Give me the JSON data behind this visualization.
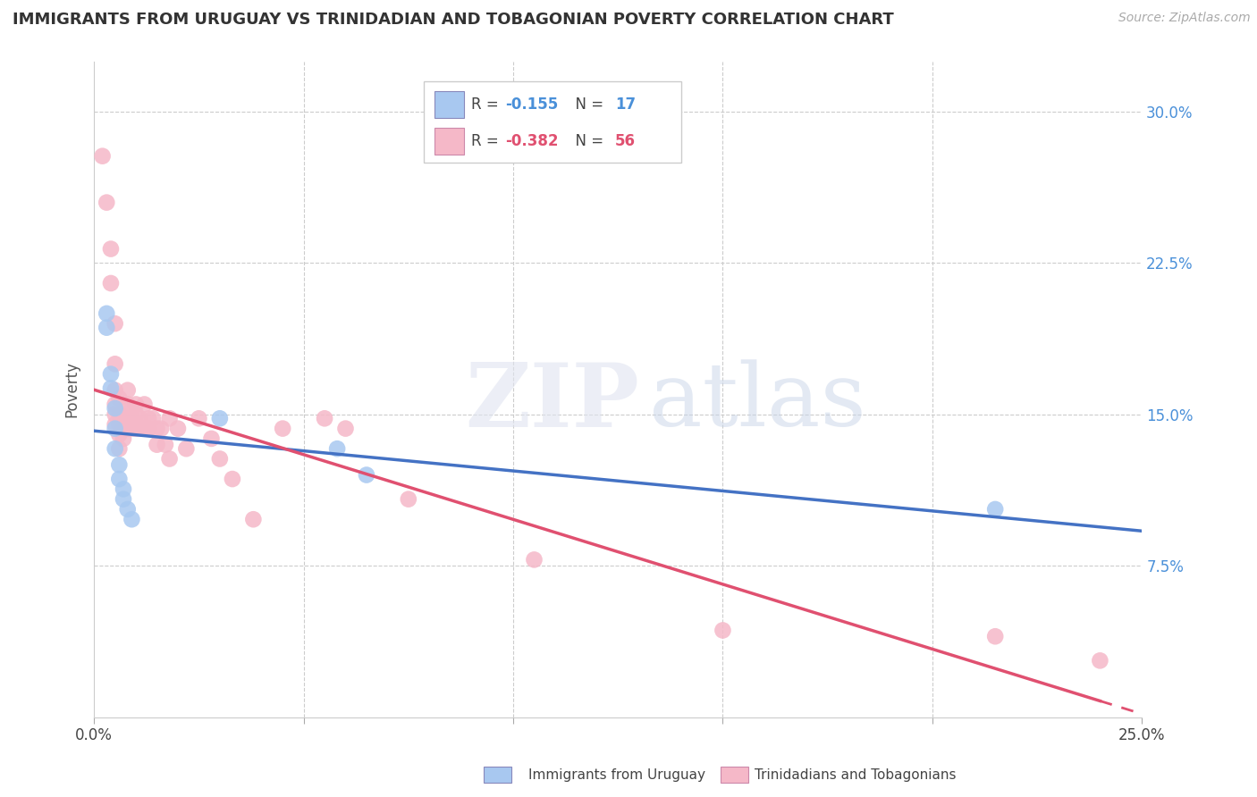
{
  "title": "IMMIGRANTS FROM URUGUAY VS TRINIDADIAN AND TOBAGONIAN POVERTY CORRELATION CHART",
  "source": "Source: ZipAtlas.com",
  "ylabel": "Poverty",
  "ytick_labels": [
    "30.0%",
    "22.5%",
    "15.0%",
    "7.5%"
  ],
  "ytick_values": [
    0.3,
    0.225,
    0.15,
    0.075
  ],
  "xtick_values": [
    0.0,
    0.05,
    0.1,
    0.15,
    0.2,
    0.25
  ],
  "xtick_labels": [
    "0.0%",
    "",
    "",
    "",
    "",
    "25.0%"
  ],
  "xlim": [
    0.0,
    0.25
  ],
  "ylim": [
    0.0,
    0.325
  ],
  "legend_blue_R": "-0.155",
  "legend_blue_N": "17",
  "legend_pink_R": "-0.382",
  "legend_pink_N": "56",
  "blue_color": "#a8c8f0",
  "pink_color": "#f5b8c8",
  "blue_line_color": "#4472c4",
  "pink_line_color": "#e05070",
  "blue_points": [
    [
      0.003,
      0.2
    ],
    [
      0.003,
      0.193
    ],
    [
      0.004,
      0.17
    ],
    [
      0.004,
      0.163
    ],
    [
      0.005,
      0.153
    ],
    [
      0.005,
      0.143
    ],
    [
      0.005,
      0.133
    ],
    [
      0.006,
      0.125
    ],
    [
      0.006,
      0.118
    ],
    [
      0.007,
      0.113
    ],
    [
      0.007,
      0.108
    ],
    [
      0.008,
      0.103
    ],
    [
      0.009,
      0.098
    ],
    [
      0.03,
      0.148
    ],
    [
      0.058,
      0.133
    ],
    [
      0.065,
      0.12
    ],
    [
      0.215,
      0.103
    ]
  ],
  "pink_points": [
    [
      0.002,
      0.278
    ],
    [
      0.003,
      0.255
    ],
    [
      0.004,
      0.232
    ],
    [
      0.004,
      0.215
    ],
    [
      0.005,
      0.195
    ],
    [
      0.005,
      0.175
    ],
    [
      0.005,
      0.162
    ],
    [
      0.005,
      0.155
    ],
    [
      0.005,
      0.15
    ],
    [
      0.005,
      0.145
    ],
    [
      0.006,
      0.158
    ],
    [
      0.006,
      0.15
    ],
    [
      0.006,
      0.145
    ],
    [
      0.006,
      0.14
    ],
    [
      0.006,
      0.133
    ],
    [
      0.007,
      0.148
    ],
    [
      0.007,
      0.143
    ],
    [
      0.007,
      0.138
    ],
    [
      0.008,
      0.162
    ],
    [
      0.008,
      0.155
    ],
    [
      0.008,
      0.148
    ],
    [
      0.008,
      0.143
    ],
    [
      0.009,
      0.153
    ],
    [
      0.009,
      0.148
    ],
    [
      0.009,
      0.143
    ],
    [
      0.01,
      0.155
    ],
    [
      0.01,
      0.15
    ],
    [
      0.01,
      0.143
    ],
    [
      0.011,
      0.148
    ],
    [
      0.011,
      0.143
    ],
    [
      0.012,
      0.155
    ],
    [
      0.012,
      0.143
    ],
    [
      0.013,
      0.148
    ],
    [
      0.013,
      0.143
    ],
    [
      0.014,
      0.148
    ],
    [
      0.015,
      0.143
    ],
    [
      0.015,
      0.135
    ],
    [
      0.016,
      0.143
    ],
    [
      0.017,
      0.135
    ],
    [
      0.018,
      0.148
    ],
    [
      0.018,
      0.128
    ],
    [
      0.02,
      0.143
    ],
    [
      0.022,
      0.133
    ],
    [
      0.025,
      0.148
    ],
    [
      0.028,
      0.138
    ],
    [
      0.03,
      0.128
    ],
    [
      0.033,
      0.118
    ],
    [
      0.038,
      0.098
    ],
    [
      0.045,
      0.143
    ],
    [
      0.055,
      0.148
    ],
    [
      0.06,
      0.143
    ],
    [
      0.075,
      0.108
    ],
    [
      0.105,
      0.078
    ],
    [
      0.15,
      0.043
    ],
    [
      0.215,
      0.04
    ],
    [
      0.24,
      0.028
    ]
  ]
}
